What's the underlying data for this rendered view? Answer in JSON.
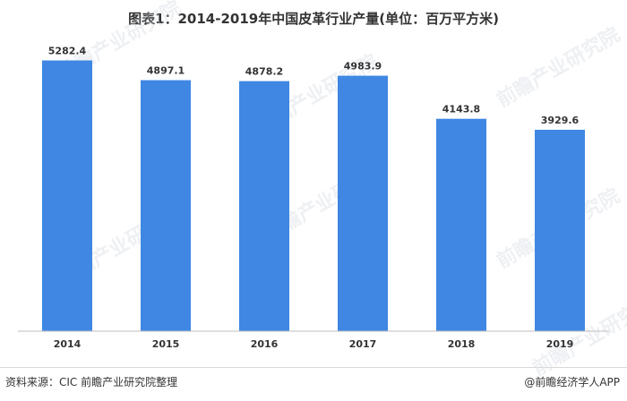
{
  "title": "图表1：2014-2019年中国皮革行业产量(单位：百万平方米)",
  "source": "资料来源：CIC 前瞻产业研究院整理",
  "credit": "@前瞻经济学人APP",
  "watermark": "前瞻产业研究院",
  "colors": {
    "bar": "#3f87e3",
    "axis": "#bfbfbf"
  },
  "chart_data": {
    "type": "bar",
    "title": "图表1：2014-2019年中国皮革行业产量(单位：百万平方米)",
    "categories": [
      "2014",
      "2015",
      "2016",
      "2017",
      "2018",
      "2019"
    ],
    "values": [
      5282.4,
      4897.1,
      4878.2,
      4983.9,
      4143.8,
      3929.6
    ],
    "value_labels": [
      "5282.4",
      "4897.1",
      "4878.2",
      "4983.9",
      "4143.8",
      "3929.6"
    ],
    "ylim": [
      0,
      5850
    ],
    "grid": false,
    "legend": "none",
    "xlabel": "",
    "ylabel": ""
  }
}
